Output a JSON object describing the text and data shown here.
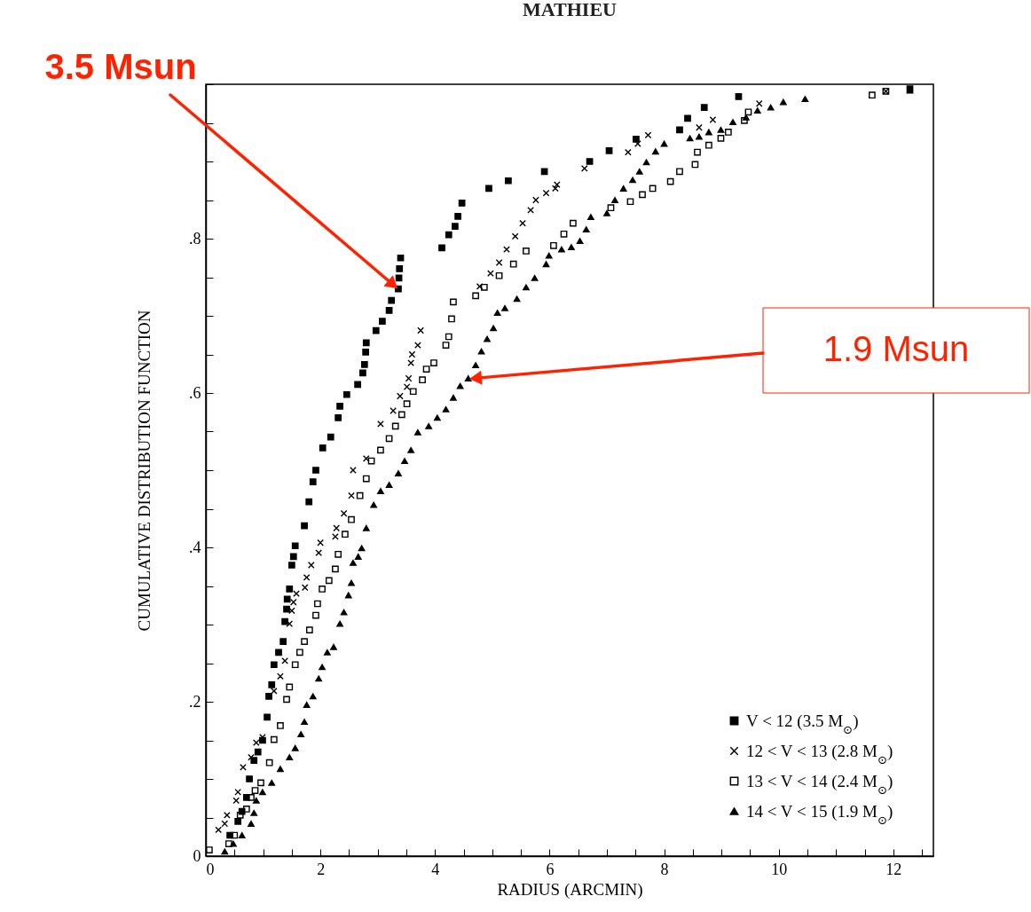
{
  "chart_data": {
    "type": "scatter",
    "title": "MATHIEU",
    "xlabel": "RADIUS (ARCMIN)",
    "ylabel": "CUMULATIVE DISTRIBUTION FUNCTION",
    "xlim": [
      0,
      12.7
    ],
    "ylim": [
      0,
      1
    ],
    "xticks": [
      0,
      {
        "value": 0.5,
        "label": null
      },
      {
        "value": 1,
        "label": null
      },
      {
        "value": 1.5,
        "label": null
      },
      2,
      {
        "value": 2.5,
        "label": null
      },
      {
        "value": 3,
        "label": null
      },
      {
        "value": 3.5,
        "label": null
      },
      4,
      {
        "value": 4.5,
        "label": null
      },
      {
        "value": 5,
        "label": null
      },
      {
        "value": 5.5,
        "label": null
      },
      6,
      {
        "value": 6.5,
        "label": null
      },
      {
        "value": 7,
        "label": null
      },
      {
        "value": 7.5,
        "label": null
      },
      8,
      {
        "value": 8.5,
        "label": null
      },
      {
        "value": 9,
        "label": null
      },
      {
        "value": 9.5,
        "label": null
      },
      10,
      {
        "value": 10.5,
        "label": null
      },
      {
        "value": 11,
        "label": null
      },
      {
        "value": 11.5,
        "label": null
      },
      12,
      {
        "value": 12.5,
        "label": null
      }
    ],
    "yticks": [
      0,
      {
        "value": 0.05,
        "label": null
      },
      {
        "value": 0.1,
        "label": null
      },
      {
        "value": 0.15,
        "label": null
      },
      {
        "value": 0.2,
        "label": ".2"
      },
      {
        "value": 0.25,
        "label": null
      },
      {
        "value": 0.3,
        "label": null
      },
      {
        "value": 0.35,
        "label": null
      },
      {
        "value": 0.4,
        "label": ".4"
      },
      {
        "value": 0.45,
        "label": null
      },
      {
        "value": 0.5,
        "label": null
      },
      {
        "value": 0.55,
        "label": null
      },
      {
        "value": 0.6,
        "label": ".6"
      },
      {
        "value": 0.65,
        "label": null
      },
      {
        "value": 0.7,
        "label": null
      },
      {
        "value": 0.75,
        "label": null
      },
      {
        "value": 0.8,
        "label": ".8"
      },
      {
        "value": 0.85,
        "label": null
      },
      {
        "value": 0.9,
        "label": null
      },
      {
        "value": 0.95,
        "label": null
      },
      {
        "value": 1,
        "label": null
      }
    ],
    "legend": "bottom right",
    "series": [
      {
        "name": "V < 12 (3.5 M$_{⊙}$)",
        "color": "#000000",
        "marker": "square",
        "x": [
          0.42,
          0.56,
          0.63,
          0.71,
          0.76,
          0.84,
          0.91,
          0.99,
          1.07,
          1.1,
          1.15,
          1.19,
          1.27,
          1.35,
          1.38,
          1.41,
          1.42,
          1.46,
          1.5,
          1.53,
          1.56,
          1.72,
          1.8,
          1.87,
          1.92,
          2.04,
          2.18,
          2.31,
          2.34,
          2.46,
          2.65,
          2.74,
          2.77,
          2.79,
          2.8,
          2.97,
          3.08,
          3.2,
          3.24,
          3.36,
          3.37,
          3.38,
          3.4,
          4.12,
          4.24,
          4.35,
          4.4,
          4.47,
          4.94,
          5.28,
          5.91,
          6.7,
          7.04,
          7.51,
          8.27,
          8.41,
          8.7,
          9.3,
          12.29
        ],
        "values": [
          0.027,
          0.045,
          0.058,
          0.076,
          0.1,
          0.124,
          0.135,
          0.15,
          0.18,
          0.207,
          0.222,
          0.248,
          0.264,
          0.278,
          0.304,
          0.32,
          0.333,
          0.346,
          0.377,
          0.388,
          0.402,
          0.428,
          0.459,
          0.485,
          0.5,
          0.529,
          0.543,
          0.568,
          0.583,
          0.598,
          0.611,
          0.626,
          0.637,
          0.653,
          0.665,
          0.681,
          0.693,
          0.707,
          0.72,
          0.735,
          0.749,
          0.761,
          0.775,
          0.788,
          0.805,
          0.816,
          0.829,
          0.846,
          0.865,
          0.875,
          0.887,
          0.9,
          0.914,
          0.929,
          0.941,
          0.956,
          0.97,
          0.984,
          0.994
        ]
      },
      {
        "name": "12 < V < 13 (2.8 M$_{⊙}$)",
        "color": "#000000",
        "marker": "cross",
        "x": [
          0.22,
          0.33,
          0.37,
          0.53,
          0.56,
          0.65,
          0.79,
          0.88,
          0.99,
          1.19,
          1.3,
          1.38,
          1.46,
          1.5,
          1.53,
          1.58,
          1.73,
          1.76,
          1.84,
          1.97,
          2.0,
          2.26,
          2.28,
          2.41,
          2.54,
          2.57,
          2.8,
          3.05,
          3.27,
          3.39,
          3.51,
          3.54,
          3.58,
          3.6,
          3.7,
          3.75,
          4.78,
          4.97,
          5.12,
          5.25,
          5.4,
          5.53,
          5.67,
          5.76,
          5.94,
          6.1,
          6.13,
          6.61,
          7.37,
          7.54,
          7.72,
          8.61,
          8.85,
          9.66,
          11.87
        ],
        "values": [
          0.034,
          0.042,
          0.053,
          0.072,
          0.083,
          0.115,
          0.128,
          0.147,
          0.154,
          0.214,
          0.233,
          0.253,
          0.301,
          0.318,
          0.329,
          0.34,
          0.348,
          0.361,
          0.377,
          0.393,
          0.406,
          0.414,
          0.425,
          0.444,
          0.467,
          0.5,
          0.515,
          0.56,
          0.577,
          0.596,
          0.608,
          0.619,
          0.639,
          0.65,
          0.662,
          0.681,
          0.738,
          0.755,
          0.769,
          0.786,
          0.803,
          0.82,
          0.837,
          0.85,
          0.859,
          0.865,
          0.87,
          0.891,
          0.912,
          0.923,
          0.934,
          0.944,
          0.954,
          0.975,
          0.991
        ]
      },
      {
        "name": "13 < V < 14 (2.4 M$_{⊙}$)",
        "color": "#000000",
        "marker": "square",
        "x": [
          0.06,
          0.4,
          0.5,
          0.6,
          0.71,
          0.79,
          0.86,
          0.96,
          1.11,
          1.19,
          1.3,
          1.41,
          1.46,
          1.56,
          1.64,
          1.72,
          1.81,
          1.92,
          1.95,
          2.03,
          2.15,
          2.26,
          2.31,
          2.43,
          2.54,
          2.69,
          2.8,
          2.89,
          3.05,
          3.2,
          3.31,
          3.42,
          3.51,
          3.62,
          3.78,
          3.85,
          3.98,
          4.19,
          4.24,
          4.29,
          4.32,
          4.71,
          4.86,
          5.12,
          5.37,
          5.59,
          6.07,
          6.25,
          6.41,
          7.07,
          7.41,
          7.62,
          7.8,
          8.11,
          8.27,
          8.54,
          8.58,
          8.78,
          8.99,
          9.12,
          9.4,
          9.47,
          11.63,
          11.87
        ],
        "values": [
          0.008,
          0.016,
          0.027,
          0.053,
          0.061,
          0.076,
          0.085,
          0.095,
          0.121,
          0.151,
          0.169,
          0.203,
          0.219,
          0.248,
          0.264,
          0.278,
          0.293,
          0.312,
          0.327,
          0.346,
          0.357,
          0.372,
          0.391,
          0.417,
          0.436,
          0.467,
          0.489,
          0.512,
          0.526,
          0.541,
          0.557,
          0.572,
          0.586,
          0.602,
          0.617,
          0.631,
          0.639,
          0.662,
          0.673,
          0.696,
          0.718,
          0.726,
          0.737,
          0.752,
          0.767,
          0.784,
          0.791,
          0.806,
          0.82,
          0.84,
          0.848,
          0.857,
          0.865,
          0.874,
          0.887,
          0.896,
          0.912,
          0.921,
          0.93,
          0.938,
          0.953,
          0.964,
          0.986,
          0.991
        ]
      },
      {
        "name": "14 < V < 15 (1.9 M$_{⊙}$)",
        "color": "#000000",
        "marker": "triangle",
        "x": [
          0.33,
          0.48,
          0.63,
          0.79,
          0.84,
          0.88,
          0.99,
          1.15,
          1.3,
          1.46,
          1.56,
          1.66,
          1.72,
          1.76,
          1.87,
          1.97,
          2.03,
          2.12,
          2.23,
          2.34,
          2.41,
          2.49,
          2.54,
          2.57,
          2.66,
          2.72,
          2.8,
          2.93,
          3.05,
          3.2,
          3.36,
          3.47,
          3.58,
          3.7,
          3.89,
          4.04,
          4.19,
          4.32,
          4.44,
          4.58,
          4.71,
          4.81,
          4.91,
          5.02,
          5.09,
          5.22,
          5.43,
          5.59,
          5.74,
          5.94,
          5.99,
          6.21,
          6.38,
          6.53,
          6.64,
          6.72,
          7.0,
          7.14,
          7.29,
          7.45,
          7.57,
          7.69,
          7.85,
          8.0,
          8.45,
          8.61,
          8.78,
          8.99,
          9.2,
          9.43,
          9.63,
          9.86,
          10.08,
          10.46,
          12.29
        ],
        "values": [
          0.006,
          0.016,
          0.027,
          0.042,
          0.056,
          0.072,
          0.083,
          0.095,
          0.113,
          0.128,
          0.14,
          0.158,
          0.174,
          0.196,
          0.207,
          0.23,
          0.245,
          0.264,
          0.271,
          0.301,
          0.316,
          0.338,
          0.354,
          0.38,
          0.388,
          0.399,
          0.425,
          0.455,
          0.473,
          0.481,
          0.496,
          0.512,
          0.526,
          0.549,
          0.557,
          0.568,
          0.579,
          0.594,
          0.609,
          0.619,
          0.636,
          0.654,
          0.67,
          0.684,
          0.704,
          0.71,
          0.722,
          0.737,
          0.749,
          0.767,
          0.778,
          0.786,
          0.789,
          0.797,
          0.812,
          0.828,
          0.833,
          0.85,
          0.865,
          0.876,
          0.887,
          0.899,
          0.913,
          0.923,
          0.93,
          0.932,
          0.938,
          0.941,
          0.951,
          0.957,
          0.966,
          0.97,
          0.977,
          0.981,
          0.992
        ]
      }
    ],
    "annotations": [
      "3.5 Msun",
      "1.9 Msun"
    ]
  }
}
